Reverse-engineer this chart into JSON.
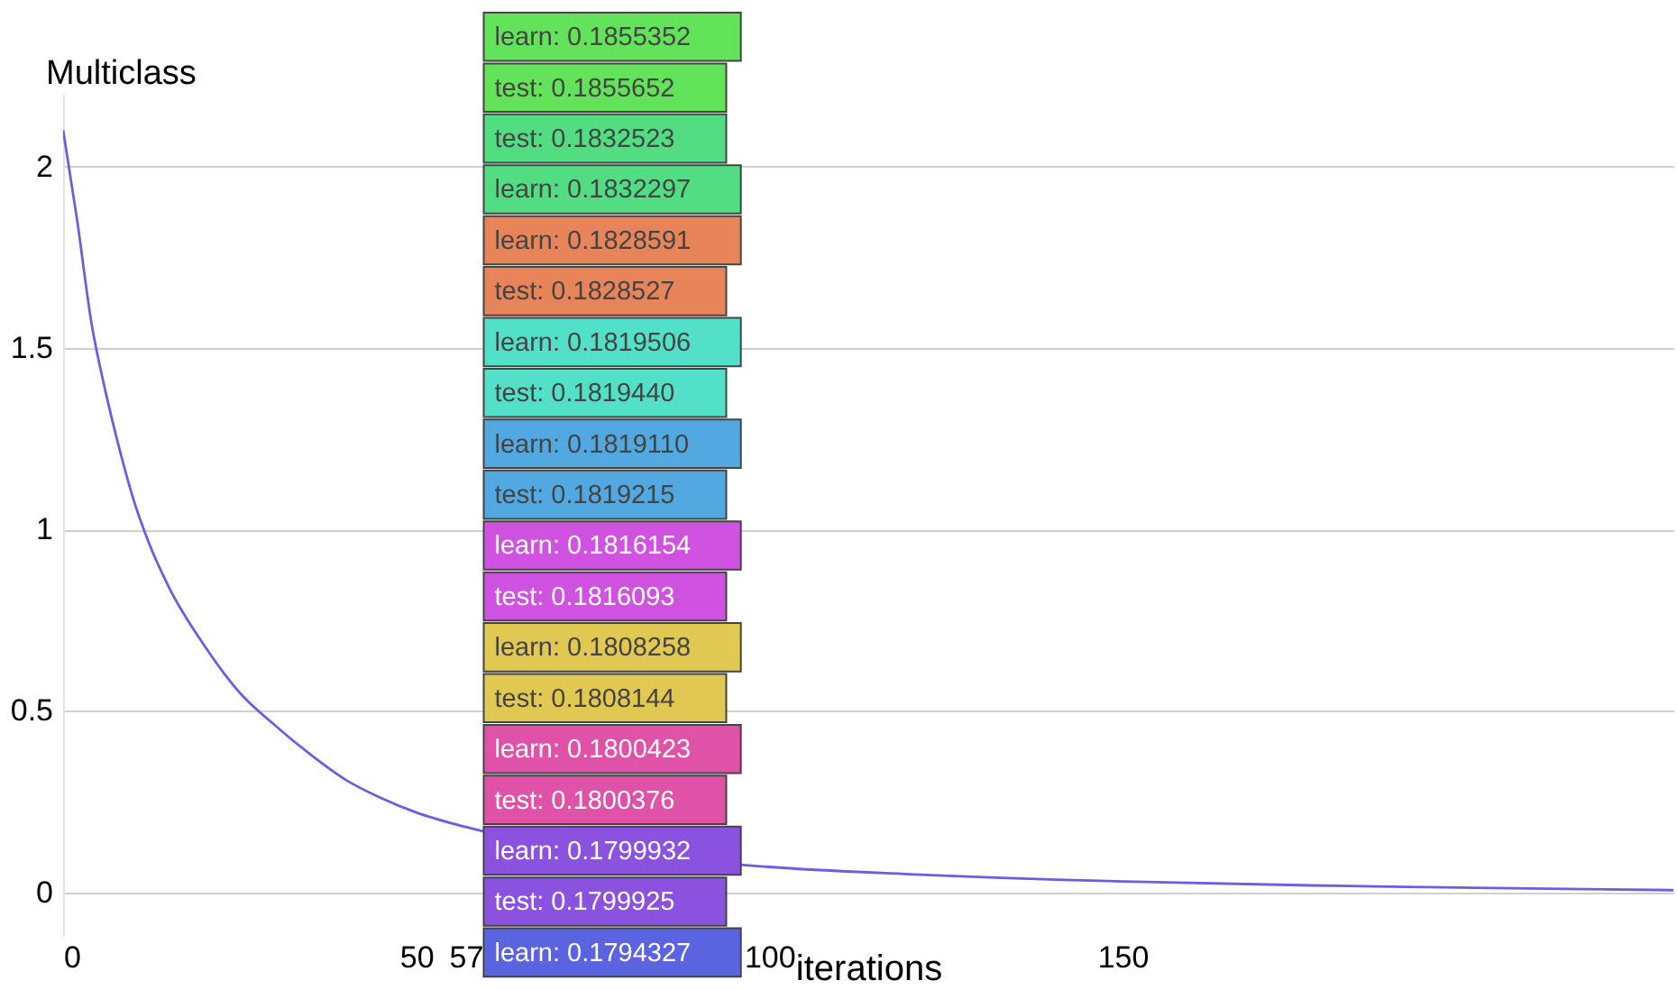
{
  "chart_data": {
    "type": "line",
    "ylabel": "Multiclass",
    "xlabel": "iterations",
    "xlim": [
      0,
      228
    ],
    "xticks": [
      0,
      50,
      {
        "value": 57,
        "label": "57"
      },
      100,
      150
    ],
    "ylim": [
      -0.12,
      2.2
    ],
    "yticks": [
      0,
      0.5,
      1,
      1.5,
      2
    ],
    "grid": "y",
    "x": [
      0,
      2,
      4,
      6,
      8,
      10,
      12,
      15,
      20,
      25,
      30,
      35,
      40,
      45,
      50,
      57,
      100,
      120,
      150,
      180,
      210,
      228
    ],
    "series": [
      {
        "color": "#6a5fe0",
        "values": [
          2.1,
          1.85,
          1.57,
          1.38,
          1.22,
          1.08,
          0.97,
          0.84,
          0.68,
          0.55,
          0.46,
          0.38,
          0.31,
          0.26,
          0.22,
          0.18,
          0.07,
          0.05,
          0.03,
          0.018,
          0.01,
          0.006
        ]
      }
    ],
    "annotations": [
      "learn: 0.1855352",
      "test: 0.1855652",
      "test: 0.1832523",
      "learn: 0.1832297",
      "learn: 0.1828591",
      "test: 0.1828527",
      "learn: 0.1819506",
      "test: 0.1819440",
      "learn: 0.1819110",
      "test: 0.1819215",
      "learn: 0.1816154",
      "test: 0.1816093",
      "learn: 0.1808258",
      "test: 0.1808144",
      "learn: 0.1800423",
      "test: 0.1800376",
      "learn: 0.1799932",
      "test: 0.1799925",
      "learn: 0.1794327"
    ]
  }
}
